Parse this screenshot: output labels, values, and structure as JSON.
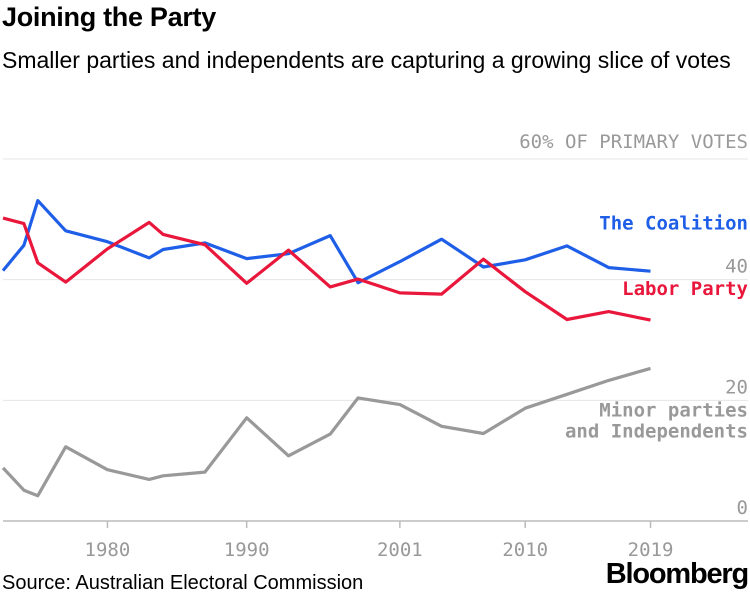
{
  "header": {
    "title": "Joining the Party",
    "subtitle": "Smaller parties and independents are capturing a growing slice of votes"
  },
  "footer": {
    "source": "Source: Australian Electoral Commission",
    "brand": "Bloomberg"
  },
  "chart_data": {
    "type": "line",
    "ylabel": "60% OF PRIMARY VOTES",
    "xlim": [
      1972.5,
      2026
    ],
    "ylim": [
      0,
      60
    ],
    "x_ticks": [
      1980,
      1990,
      2001,
      2010,
      2019
    ],
    "y_ticks": [
      0,
      20,
      40,
      60
    ],
    "y_tick_labels": [
      "0",
      "20",
      "40",
      ""
    ],
    "grid": true,
    "series": [
      {
        "name": "The Coalition",
        "color": "#1f5fe8",
        "x": [
          1972.5,
          1974,
          1975,
          1977,
          1980,
          1983,
          1984,
          1987,
          1990,
          1993,
          1996,
          1998,
          2001,
          2004,
          2007,
          2010,
          2013,
          2016,
          2019
        ],
        "y": [
          41.5,
          45.7,
          53.1,
          48.1,
          46.3,
          43.6,
          45.0,
          46.1,
          43.5,
          44.3,
          47.3,
          39.5,
          43.0,
          46.7,
          42.1,
          43.3,
          45.6,
          42.0,
          41.4
        ]
      },
      {
        "name": "Labor Party",
        "color": "#e8173b",
        "x": [
          1972.5,
          1974,
          1975,
          1977,
          1980,
          1983,
          1984,
          1987,
          1990,
          1993,
          1996,
          1998,
          2001,
          2004,
          2007,
          2010,
          2013,
          2016,
          2019
        ],
        "y": [
          50.2,
          49.3,
          42.8,
          39.6,
          45.1,
          49.5,
          47.5,
          45.8,
          39.4,
          44.9,
          38.8,
          40.1,
          37.8,
          37.6,
          43.4,
          38.0,
          33.4,
          34.7,
          33.3
        ]
      },
      {
        "name": "Minor parties and Independents",
        "color": "#999999",
        "x": [
          1972.5,
          1974,
          1975,
          1977,
          1980,
          1983,
          1984,
          1987,
          1990,
          1993,
          1996,
          1998,
          2001,
          2004,
          2007,
          2010,
          2013,
          2016,
          2019
        ],
        "y": [
          8.8,
          5.1,
          4.2,
          12.3,
          8.5,
          6.9,
          7.5,
          8.1,
          17.1,
          10.8,
          14.4,
          20.4,
          19.3,
          15.7,
          14.5,
          18.7,
          21.0,
          23.3,
          25.3
        ]
      }
    ],
    "series_labels": [
      [
        "The Coalition"
      ],
      [
        "Labor Party"
      ],
      [
        "Minor parties",
        "and Independents"
      ]
    ]
  }
}
